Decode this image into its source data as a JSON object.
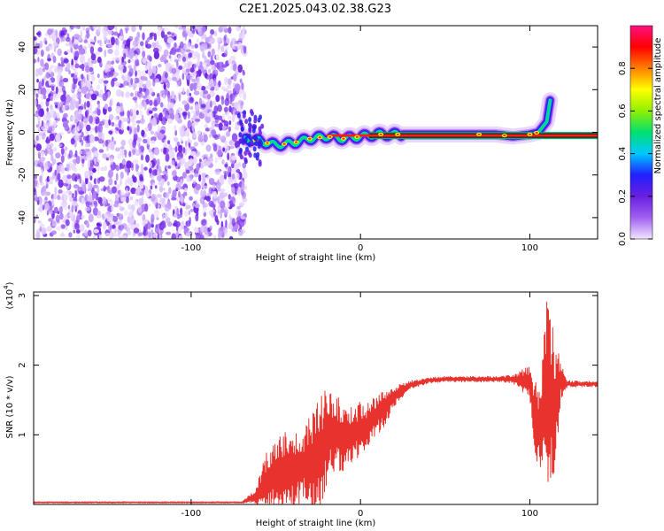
{
  "title": "C2E1.2025.043.02.38.G23",
  "chart_data": [
    {
      "type": "heatmap",
      "name": "spectrogram",
      "xlabel": "Height of straight line (km)",
      "ylabel": "Frequency (Hz)",
      "xlim": [
        -193,
        140
      ],
      "ylim": [
        -50,
        50
      ],
      "xticks": [
        -100,
        0,
        100
      ],
      "yticks": [
        -40,
        -20,
        0,
        20,
        40
      ],
      "noise_region_x": [
        -193,
        -68
      ],
      "signal": {
        "description_free": true,
        "x": [
          -68,
          -60,
          -50,
          -40,
          -30,
          -20,
          -10,
          0,
          10,
          20,
          40,
          60,
          80,
          90,
          100,
          105,
          110,
          112
        ],
        "freq": [
          -3,
          -4,
          -6,
          -5,
          -3,
          -2,
          -3,
          -2,
          -1,
          -1,
          -1,
          -1,
          -1,
          -2,
          -1,
          0,
          5,
          15
        ]
      },
      "colorbar": {
        "label": "Normalized spectral amplitude",
        "ticks": [
          "0.0",
          "0.2",
          "0.4",
          "0.6",
          "0.8"
        ],
        "tick_values": [
          0.0,
          0.2,
          0.4,
          0.6,
          0.8
        ],
        "range": [
          0,
          1
        ],
        "colors": [
          "#f2e6ff",
          "#a060f0",
          "#6a1fe0",
          "#2020ff",
          "#00c8ff",
          "#00e070",
          "#90f000",
          "#ffff00",
          "#ff8000",
          "#ff0000",
          "#ff1080"
        ]
      }
    },
    {
      "type": "line",
      "name": "snr",
      "xlabel": "Height of straight line (km)",
      "ylabel": "SNR (10 * v/v)",
      "scale_label": "(x10",
      "scale_exp": "4",
      "xlim": [
        -193,
        140
      ],
      "ylim": [
        0,
        3.05
      ],
      "xticks": [
        -100,
        0,
        100
      ],
      "yticks": [
        1,
        2,
        3
      ],
      "color": "#e8322d",
      "envelope": {
        "x": [
          -193,
          -70,
          -62,
          -55,
          -50,
          -45,
          -40,
          -35,
          -30,
          -25,
          -20,
          -15,
          -10,
          -5,
          0,
          5,
          10,
          15,
          20,
          25,
          30,
          40,
          50,
          60,
          80,
          90,
          100,
          103,
          106,
          109,
          112,
          115,
          118,
          122,
          130,
          140
        ],
        "mid": [
          0.03,
          0.03,
          0.12,
          0.35,
          0.45,
          0.5,
          0.45,
          0.55,
          0.6,
          0.7,
          0.95,
          1.05,
          0.95,
          1.0,
          1.1,
          1.15,
          1.3,
          1.4,
          1.55,
          1.65,
          1.72,
          1.78,
          1.8,
          1.8,
          1.8,
          1.8,
          1.75,
          1.2,
          1.0,
          1.7,
          1.5,
          1.4,
          1.75,
          1.73,
          1.73,
          1.73
        ],
        "amp": [
          0.01,
          0.01,
          0.1,
          0.45,
          0.6,
          0.6,
          0.55,
          0.55,
          0.7,
          0.9,
          0.7,
          0.55,
          0.5,
          0.4,
          0.4,
          0.3,
          0.3,
          0.25,
          0.15,
          0.1,
          0.06,
          0.04,
          0.04,
          0.04,
          0.04,
          0.06,
          0.25,
          0.7,
          0.55,
          1.3,
          1.3,
          1.0,
          0.3,
          0.05,
          0.04,
          0.04
        ]
      }
    }
  ]
}
